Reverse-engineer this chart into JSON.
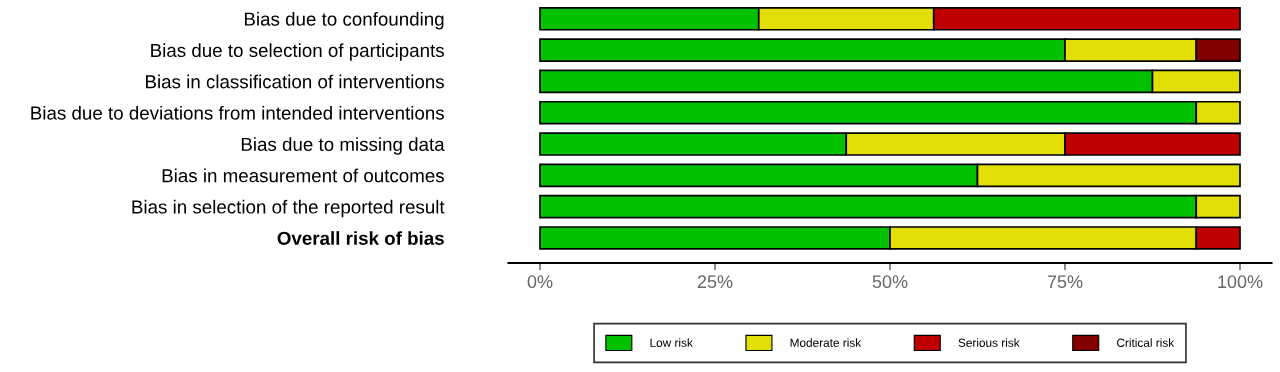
{
  "chart_data": {
    "type": "bar",
    "orientation": "horizontal",
    "stacked": true,
    "categories": [
      "Bias due to confounding",
      "Bias due to selection of participants",
      "Bias in classification of interventions",
      "Bias due to deviations from intended interventions",
      "Bias due to missing data",
      "Bias in measurement of outcomes",
      "Bias in selection of the reported result",
      "Overall risk of bias"
    ],
    "series": [
      {
        "name": "Low risk",
        "color": "#02c100",
        "values": [
          31.25,
          75,
          87.5,
          93.75,
          43.75,
          62.5,
          93.75,
          50
        ]
      },
      {
        "name": "Moderate risk",
        "color": "#e2df07",
        "values": [
          25,
          18.75,
          12.5,
          6.25,
          31.25,
          37.5,
          6.25,
          43.75
        ]
      },
      {
        "name": "Serious risk",
        "color": "#bf0000",
        "values": [
          43.75,
          null,
          null,
          null,
          25,
          null,
          null,
          6.25
        ]
      },
      {
        "name": "Critical risk",
        "color": "#820000",
        "values": [
          null,
          6.25,
          null,
          null,
          null,
          null,
          null,
          null
        ]
      }
    ],
    "xlim": [
      -4.5,
      104.5
    ],
    "xticks": [
      {
        "value": 0,
        "label": "0%"
      },
      {
        "value": 25,
        "label": "25%"
      },
      {
        "value": 50,
        "label": "50%"
      },
      {
        "value": 75,
        "label": "75%"
      },
      {
        "value": 100,
        "label": "100%"
      }
    ],
    "grid": false,
    "legend": "bottom"
  }
}
